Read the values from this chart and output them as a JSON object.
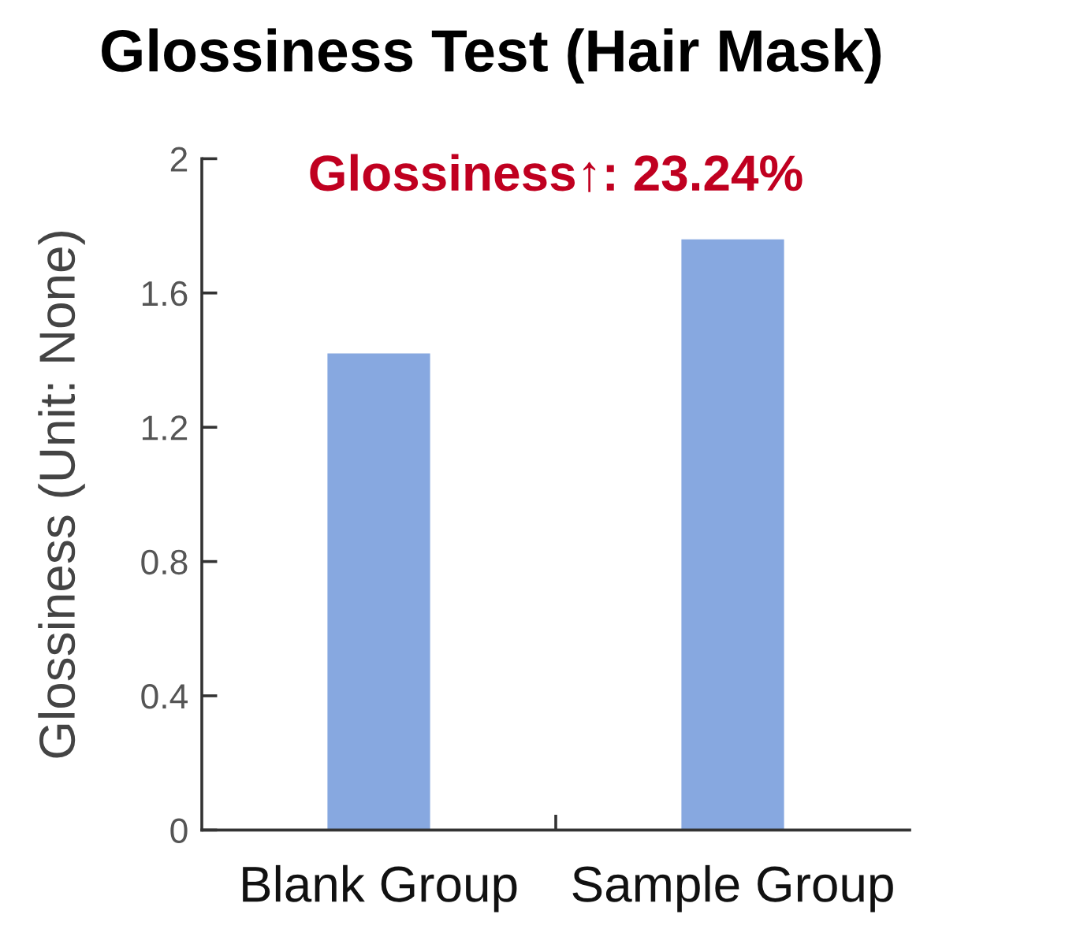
{
  "chart_data": {
    "type": "bar",
    "title": "Glossiness Test (Hair Mask)",
    "ylabel": "Glossiness (Unit: None)",
    "categories": [
      "Blank Group",
      "Sample Group"
    ],
    "values": [
      1.42,
      1.76
    ],
    "color": "#87a8e0",
    "ylim": [
      0,
      2
    ],
    "yticks": [
      0,
      0.4,
      0.8,
      1.2,
      1.6,
      2
    ],
    "annotations": [
      "Glossiness↑: 23.24%"
    ]
  }
}
